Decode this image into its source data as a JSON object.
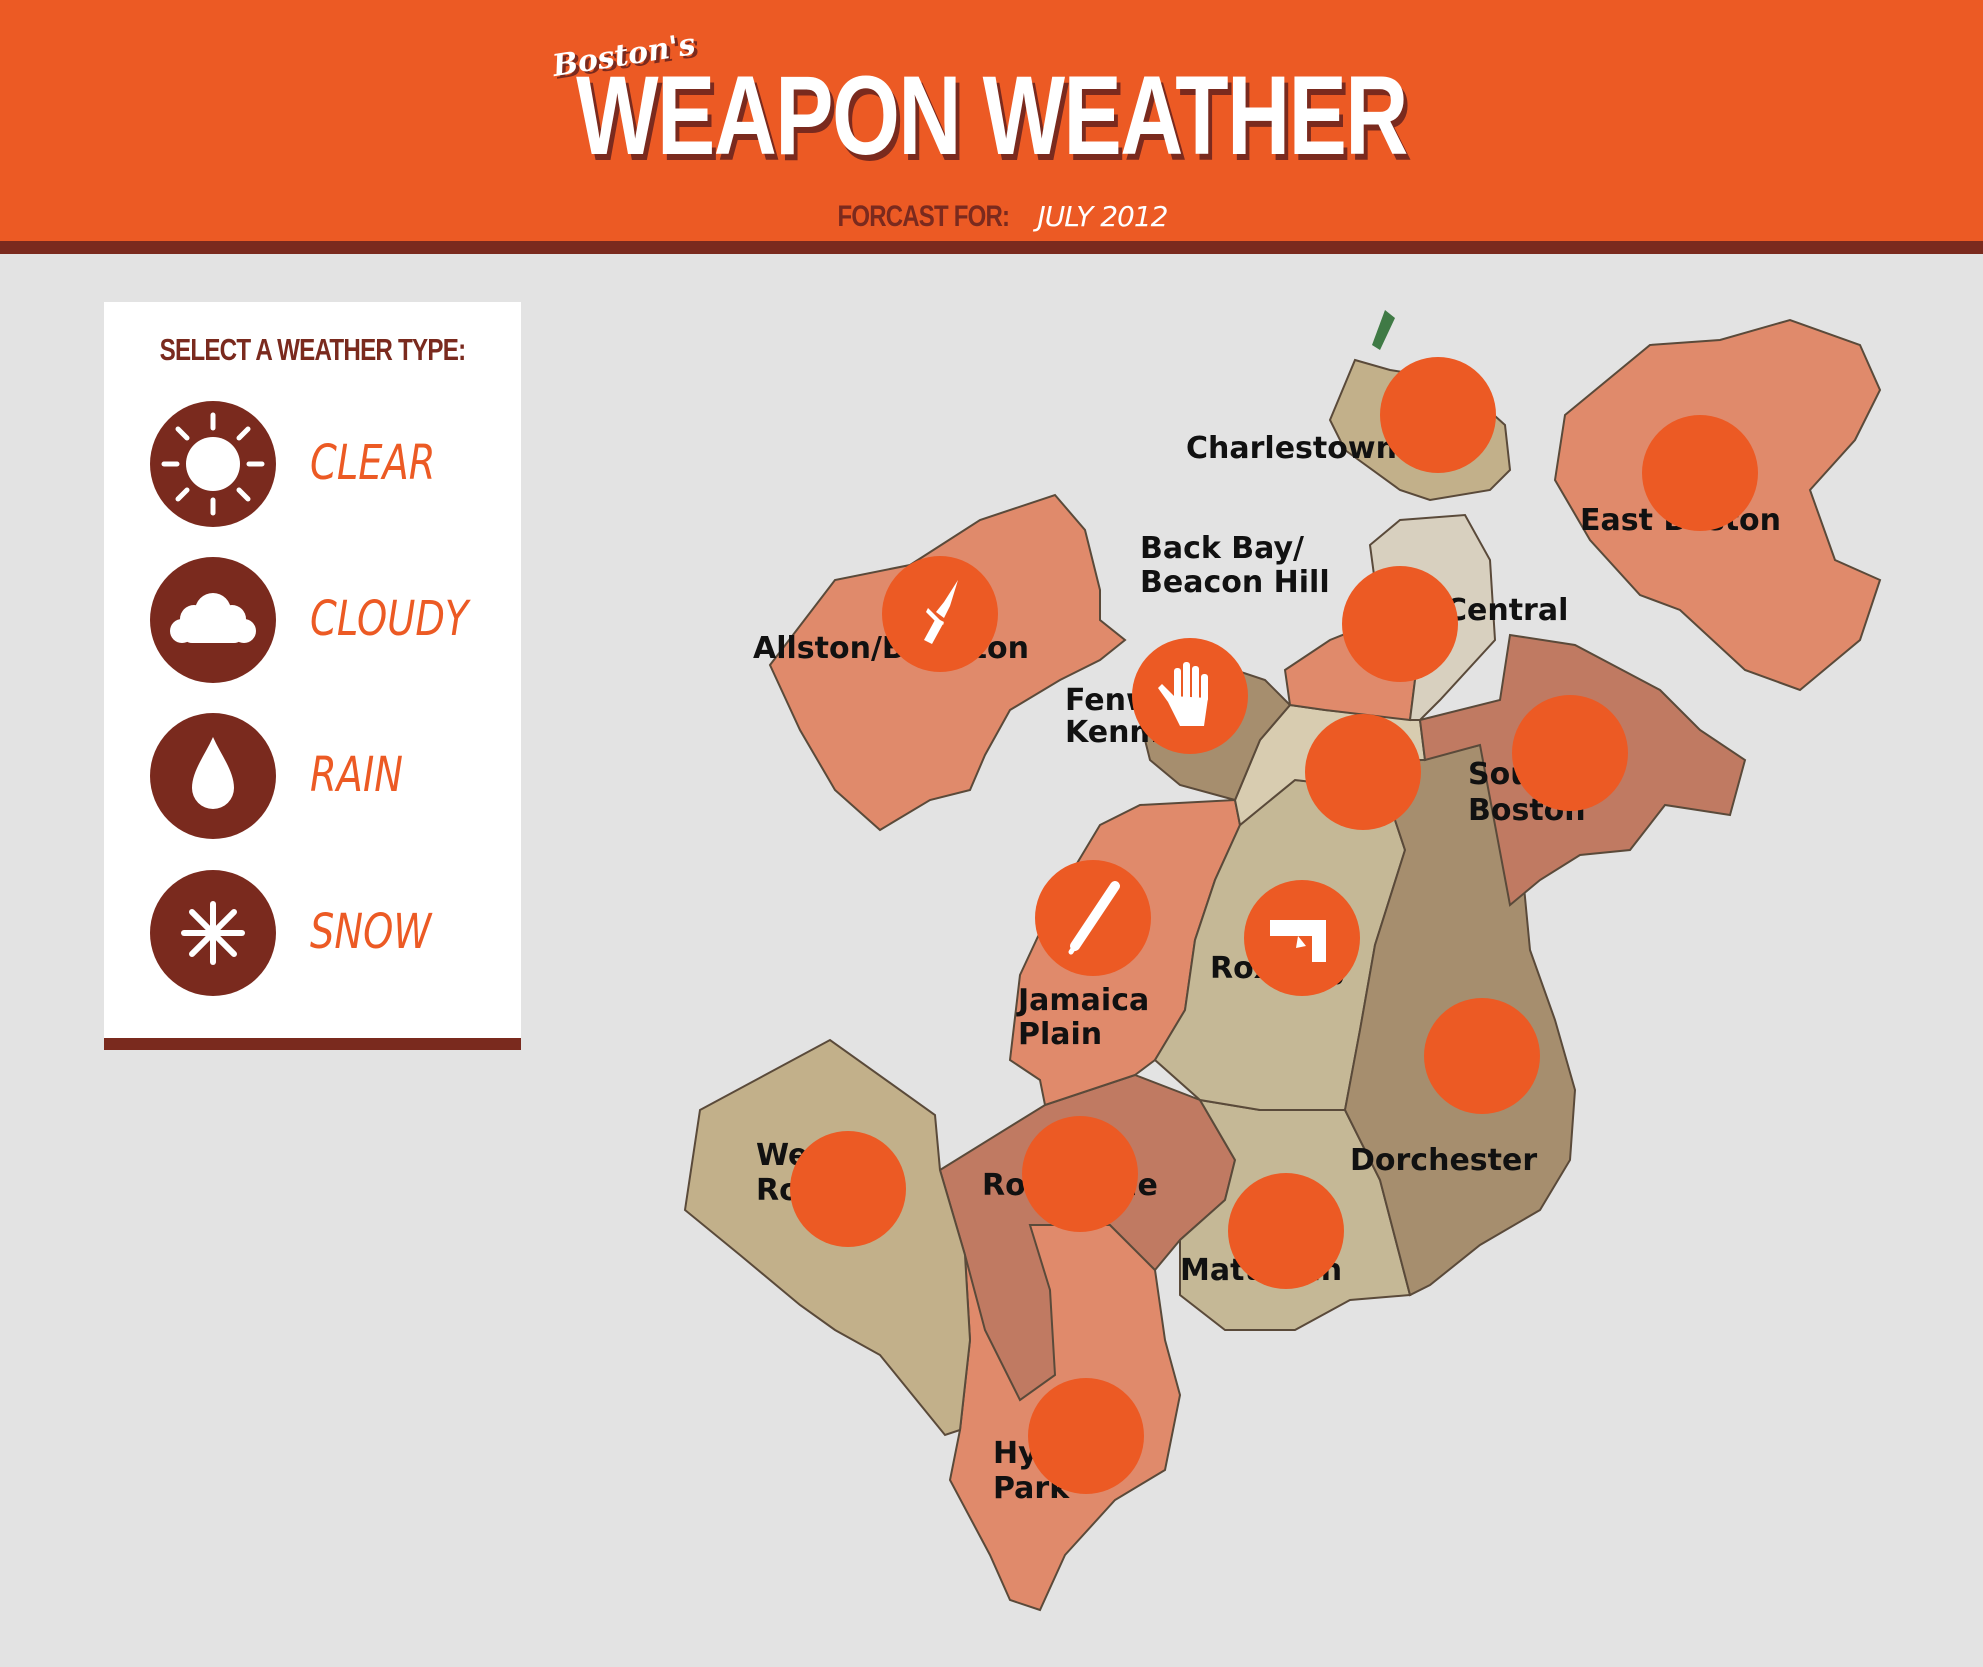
{
  "header": {
    "brand_script": "Boston's",
    "title": "WEAPON WEATHER",
    "forecast_label": "FORCAST FOR:",
    "forecast_value": "JULY 2012"
  },
  "legend": {
    "title": "SELECT A WEATHER TYPE:",
    "options": [
      {
        "label": "CLEAR",
        "icon": "sun-icon"
      },
      {
        "label": "CLOUDY",
        "icon": "cloud-icon"
      },
      {
        "label": "RAIN",
        "icon": "raindrop-icon"
      },
      {
        "label": "SNOW",
        "icon": "snowflake-icon"
      }
    ]
  },
  "map": {
    "neighborhoods": [
      {
        "id": "charlestown",
        "label": [
          "Charlestown"
        ],
        "color": "#c2b08a"
      },
      {
        "id": "east-boston",
        "label": [
          "East Boston"
        ],
        "color": "#e08a6b"
      },
      {
        "id": "back-bay",
        "label": [
          "Back Bay/",
          "Beacon Hill"
        ],
        "color": "#e08a6b"
      },
      {
        "id": "central",
        "label": [
          "Central"
        ],
        "color": "#d8d0bf"
      },
      {
        "id": "allston-brighton",
        "label": [
          "Allston/Brighton"
        ],
        "color": "#e08a6b"
      },
      {
        "id": "fenway-kenmore",
        "label": [
          "Fenway/",
          "Kenmore"
        ],
        "color": "#a68e6e"
      },
      {
        "id": "south-end",
        "label": [],
        "color": "#d8ccb0"
      },
      {
        "id": "south-boston",
        "label": [
          "South",
          "Boston"
        ],
        "color": "#c07a62"
      },
      {
        "id": "roxbury",
        "label": [
          "Roxbury"
        ],
        "color": "#c5b896"
      },
      {
        "id": "jamaica-plain",
        "label": [
          "Jamaica",
          "Plain"
        ],
        "color": "#e08a6b"
      },
      {
        "id": "dorchester",
        "label": [
          "Dorchester"
        ],
        "color": "#a68e6e"
      },
      {
        "id": "west-roxbury",
        "label": [
          "West",
          "Roxbury"
        ],
        "color": "#c2b08a"
      },
      {
        "id": "roslindale",
        "label": [
          "Roslindale"
        ],
        "color": "#c07a62"
      },
      {
        "id": "mattapan",
        "label": [
          "Mattapan"
        ],
        "color": "#c5b896"
      },
      {
        "id": "hyde-park",
        "label": [
          "Hyde",
          "Park"
        ],
        "color": "#e08a6b"
      }
    ],
    "markers": [
      {
        "area": "charlestown",
        "icon": null
      },
      {
        "area": "east-boston",
        "icon": null
      },
      {
        "area": "allston-brighton",
        "icon": "knife-icon"
      },
      {
        "area": "back-bay",
        "icon": null
      },
      {
        "area": "fenway-kenmore",
        "icon": "hand-icon"
      },
      {
        "area": "south-end",
        "icon": null
      },
      {
        "area": "south-boston",
        "icon": null
      },
      {
        "area": "jamaica-plain",
        "icon": "bat-icon"
      },
      {
        "area": "roxbury",
        "icon": "gun-icon"
      },
      {
        "area": "dorchester",
        "icon": null
      },
      {
        "area": "west-roxbury",
        "icon": null
      },
      {
        "area": "roslindale",
        "icon": null
      },
      {
        "area": "mattapan",
        "icon": null
      },
      {
        "area": "hyde-park",
        "icon": null
      }
    ]
  },
  "colors": {
    "brand_orange": "#ec5a24",
    "brand_brown": "#7a2a1e",
    "background": "#e3e3e3"
  }
}
